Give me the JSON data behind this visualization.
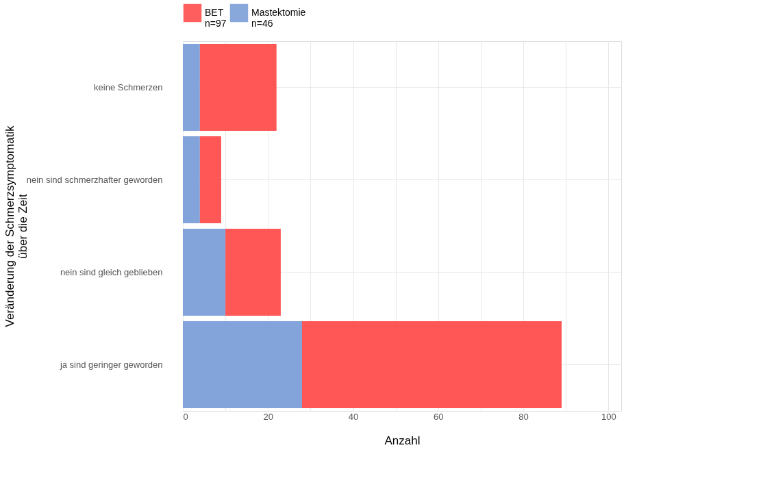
{
  "chart_data": {
    "type": "bar",
    "orientation": "horizontal",
    "stacked": true,
    "xlabel": "Anzahl",
    "ylabel": "Veränderung der Schmerzsymptomatik\nüber die Zeit",
    "categories": [
      "keine Schmerzen",
      "nein sind schmerzhafter geworden",
      "nein sind gleich geblieben",
      "ja sind geringer geworden"
    ],
    "series": [
      {
        "name": "Mastektomie\n n=46",
        "color": "#7b9fd8",
        "values": [
          4,
          4,
          10,
          28
        ]
      },
      {
        "name": "BET\nn=97",
        "color": "#ff4d4d",
        "values": [
          18,
          5,
          13,
          61
        ]
      }
    ],
    "xlim": [
      0,
      103
    ],
    "xticks": [
      0,
      {
        "value": 10,
        "label": null
      },
      20,
      {
        "value": 30,
        "label": null
      },
      40,
      {
        "value": 50,
        "label": null
      },
      60,
      {
        "value": 70,
        "label": null
      },
      80,
      {
        "value": 90,
        "label": null
      },
      100
    ],
    "grid": true,
    "legend": "top"
  }
}
